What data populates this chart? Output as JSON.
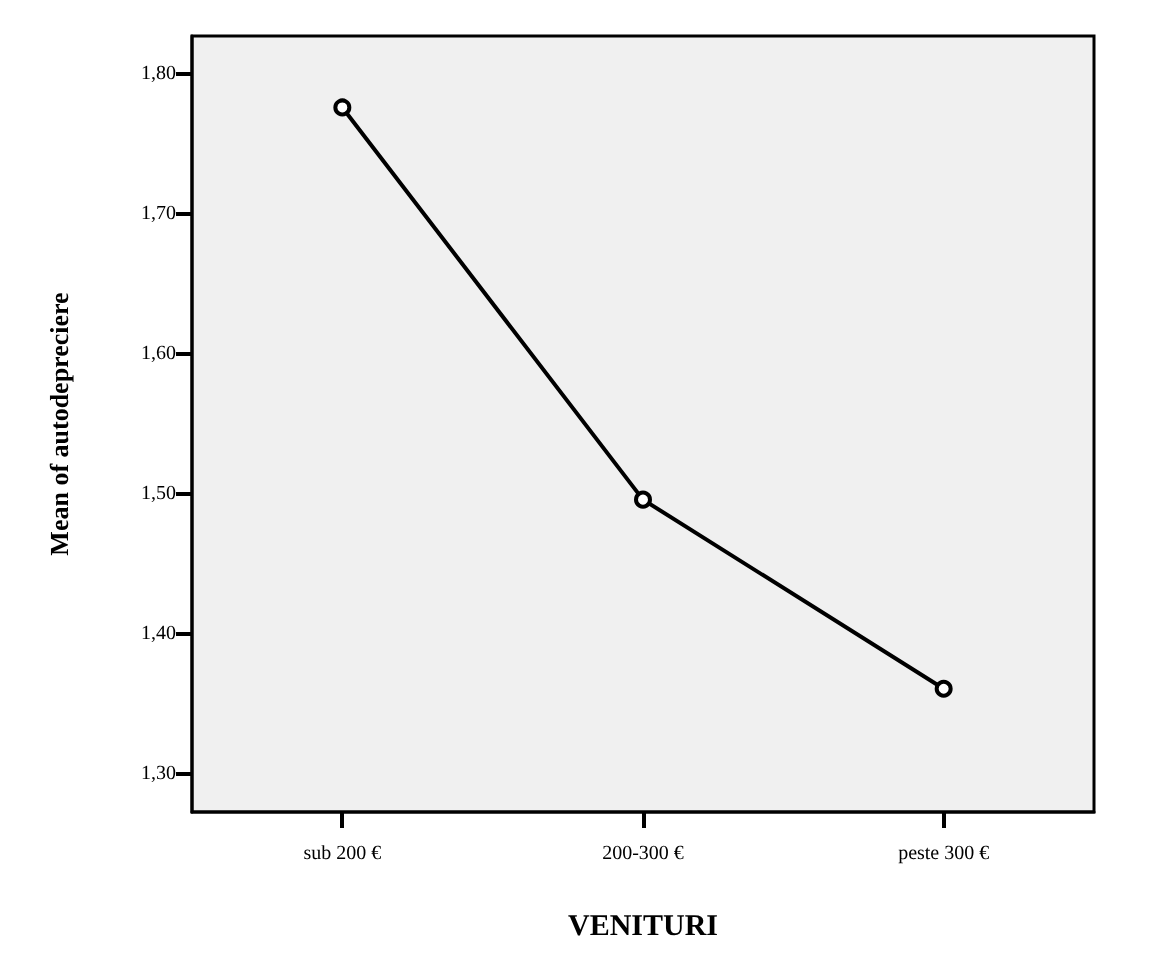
{
  "chart_data": {
    "type": "line",
    "xlabel": "VENITURI",
    "ylabel": "Mean of autodepreciere",
    "categories": [
      "sub 200 €",
      "200-300 €",
      "peste 300 €"
    ],
    "series": [
      {
        "color": "#000000",
        "values": [
          1.776,
          1.496,
          1.361
        ]
      }
    ],
    "ylim": [
      1.273,
      1.827
    ],
    "yticks": [
      {
        "value": 1.3,
        "label": "1,30"
      },
      {
        "value": 1.4,
        "label": "1,40"
      },
      {
        "value": 1.5,
        "label": "1,50"
      },
      {
        "value": 1.6,
        "label": "1,60"
      },
      {
        "value": 1.7,
        "label": "1,70"
      },
      {
        "value": 1.8,
        "label": "1,80"
      }
    ],
    "grid": false,
    "marker": "circle",
    "line_style": "solid"
  }
}
